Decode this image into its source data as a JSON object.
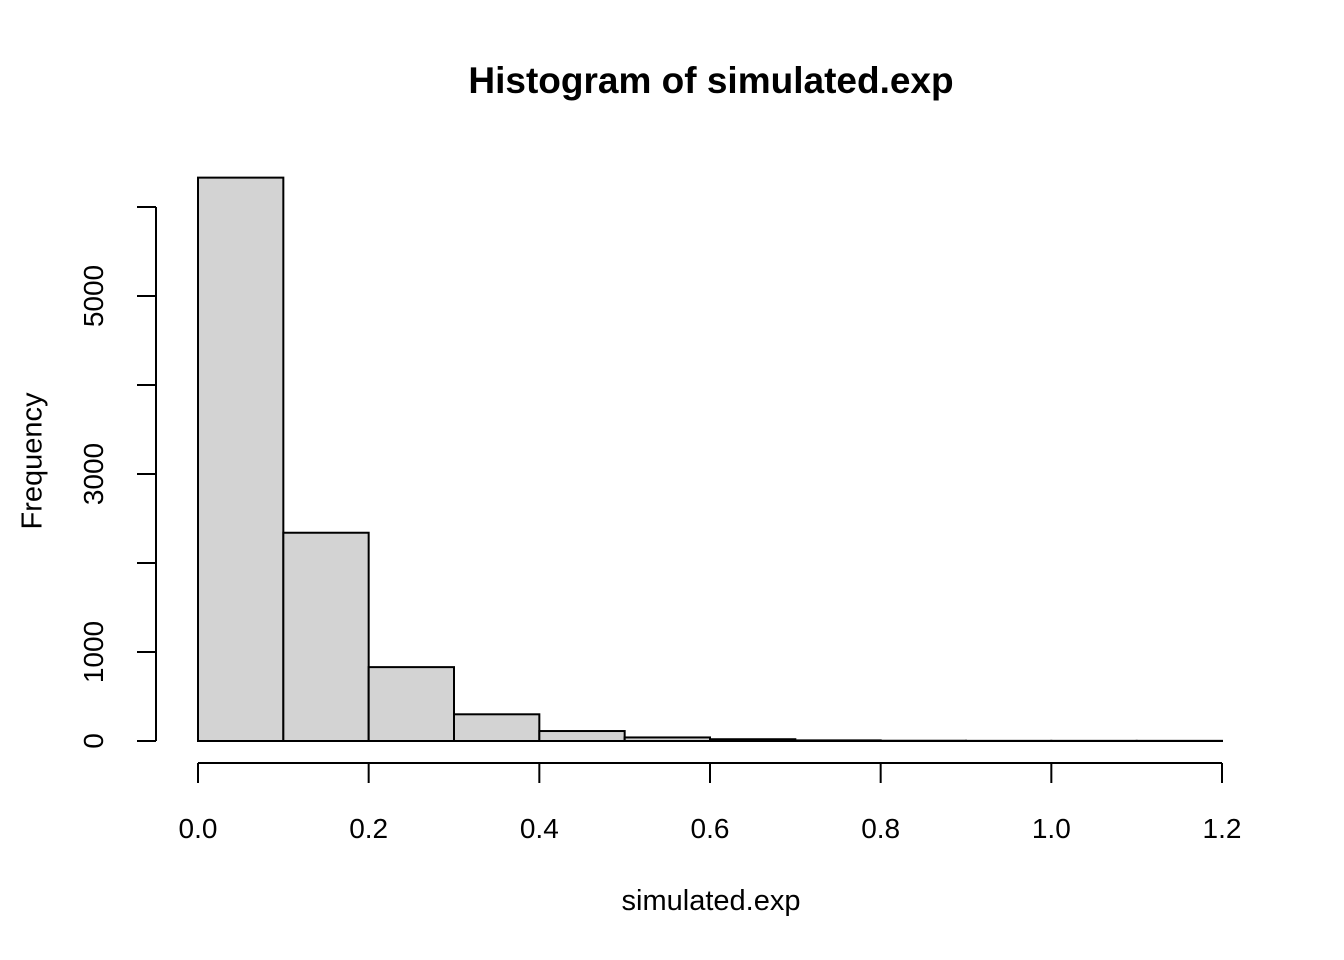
{
  "chart_data": {
    "type": "bar",
    "subtype": "histogram",
    "title": "Histogram of simulated.exp",
    "xlabel": "simulated.exp",
    "ylabel": "Frequency",
    "breaks": [
      0,
      0.1,
      0.2,
      0.3,
      0.4,
      0.5,
      0.6,
      0.7,
      0.8,
      0.9,
      1.0,
      1.1,
      1.2
    ],
    "counts": [
      6330,
      2340,
      830,
      300,
      112,
      40,
      20,
      7,
      3,
      1,
      0,
      1
    ],
    "xlim": [
      0,
      1.2
    ],
    "ylim": [
      0,
      6000
    ],
    "x_ticks": [
      0.0,
      0.2,
      0.4,
      0.6,
      0.8,
      1.0,
      1.2
    ],
    "x_tick_labels": [
      "0.0",
      "0.2",
      "0.4",
      "0.6",
      "0.8",
      "1.0",
      "1.2"
    ],
    "y_ticks": [
      0,
      1000,
      2000,
      3000,
      4000,
      5000,
      6000
    ],
    "y_tick_labels": [
      "0",
      "1000",
      "",
      "3000",
      "",
      "5000",
      ""
    ],
    "grid": false,
    "legend": null,
    "bar_fill": "#d3d3d3",
    "bar_stroke": "#000000",
    "axis_color": "#000000",
    "background": "#ffffff"
  }
}
